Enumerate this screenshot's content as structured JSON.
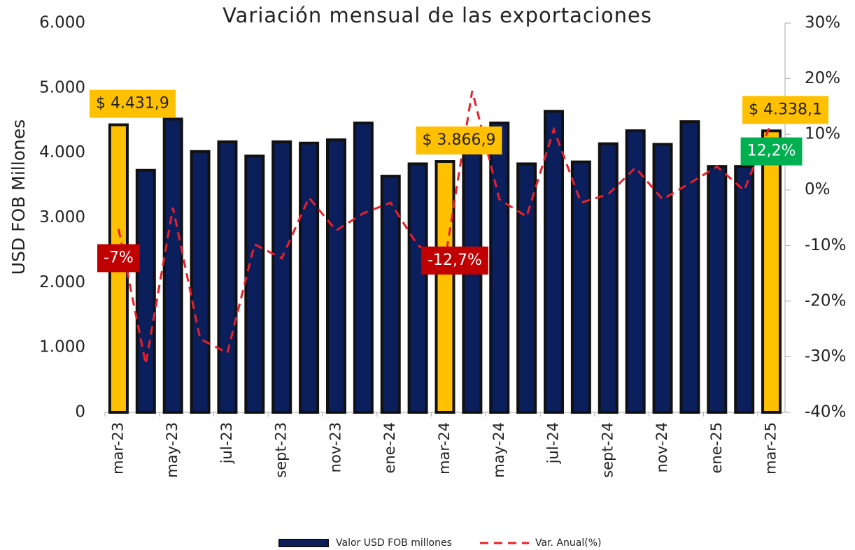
{
  "chart_data": {
    "type": "bar_line",
    "title": "Variación mensual de las exportaciones",
    "y_label": "USD FOB Millones",
    "categories": [
      "mar-23",
      null,
      "may-23",
      null,
      "jul-23",
      null,
      "sept-23",
      null,
      "nov-23",
      null,
      "ene-24",
      null,
      "mar-24",
      null,
      "may-24",
      null,
      "jul-24",
      null,
      "sept-24",
      null,
      "nov-24",
      null,
      "ene-25",
      null,
      "mar-25"
    ],
    "series": [
      {
        "name": "Valor USD FOB millones",
        "color": "#0a1f5c",
        "colors": [
          "#ffc000",
          "#0a1f5c",
          "#0a1f5c",
          "#0a1f5c",
          "#0a1f5c",
          "#0a1f5c",
          "#0a1f5c",
          "#0a1f5c",
          "#0a1f5c",
          "#0a1f5c",
          "#0a1f5c",
          "#0a1f5c",
          "#ffc000",
          "#0a1f5c",
          "#0a1f5c",
          "#0a1f5c",
          "#0a1f5c",
          "#0a1f5c",
          "#0a1f5c",
          "#0a1f5c",
          "#0a1f5c",
          "#0a1f5c",
          "#0a1f5c",
          "#0a1f5c",
          "#ffc000"
        ],
        "values": [
          4431.9,
          3730,
          4520,
          4020,
          4170,
          3950,
          4170,
          4150,
          4200,
          4460,
          3640,
          3830,
          3866.9,
          4300,
          4460,
          3830,
          4640,
          3860,
          4140,
          4340,
          4130,
          4480,
          3790,
          3790,
          4338.1
        ],
        "value_labels": [
          "$ 4.431,9",
          null,
          null,
          null,
          null,
          null,
          null,
          null,
          null,
          null,
          null,
          null,
          "$ 3.866,9",
          null,
          null,
          null,
          null,
          null,
          null,
          null,
          null,
          null,
          null,
          null,
          "$ 4.338,1"
        ],
        "value_label_colors": [
          "#ffc000",
          null,
          null,
          null,
          null,
          null,
          null,
          null,
          null,
          null,
          null,
          null,
          "#ffc000",
          null,
          null,
          null,
          null,
          null,
          null,
          null,
          null,
          null,
          null,
          null,
          "#ffc000"
        ]
      },
      {
        "name": "Var. Anual(%)",
        "color": "#e8202a",
        "axis": "y2",
        "dashed": true,
        "values": [
          -7,
          -31.3,
          -3.2,
          -26.8,
          -29.3,
          -9.8,
          -12.3,
          -1.4,
          -7.3,
          -4.2,
          -2.3,
          -10,
          -12.7,
          17.8,
          -1.7,
          -4.8,
          10.9,
          -2.3,
          -0.8,
          4,
          -1.7,
          1.2,
          4.2,
          -0.1,
          12.2
        ],
        "value_labels": [
          "-7%",
          null,
          null,
          null,
          null,
          null,
          null,
          null,
          null,
          null,
          null,
          null,
          "-12,7%",
          null,
          null,
          null,
          null,
          null,
          null,
          null,
          null,
          null,
          null,
          null,
          "12,2%"
        ],
        "value_label_colors": [
          "#c00000",
          null,
          null,
          null,
          null,
          null,
          null,
          null,
          null,
          null,
          null,
          null,
          "#c00000",
          null,
          null,
          null,
          null,
          null,
          null,
          null,
          null,
          null,
          null,
          null,
          "#00b050"
        ]
      }
    ],
    "ylim": [
      0,
      6000
    ],
    "yticks": [
      0,
      {
        "value": 1000,
        "label": "1.000"
      },
      {
        "value": 2000,
        "label": "2.000"
      },
      {
        "value": 3000,
        "label": "3.000"
      },
      {
        "value": 4000,
        "label": "4.000"
      },
      {
        "value": 5000,
        "label": "5.000"
      },
      {
        "value": 6000,
        "label": "6.000"
      }
    ],
    "y2lim": [
      -40,
      30
    ],
    "y2ticks": [
      {
        "value": -40,
        "label": "-40%"
      },
      {
        "value": -30,
        "label": "-30%"
      },
      {
        "value": -20,
        "label": "-20%"
      },
      {
        "value": -10,
        "label": "-10%"
      },
      {
        "value": 0,
        "label": "0%"
      },
      {
        "value": 10,
        "label": "10%"
      },
      {
        "value": 20,
        "label": "20%"
      },
      {
        "value": 30,
        "label": "30%"
      }
    ],
    "legend": "bottom"
  }
}
